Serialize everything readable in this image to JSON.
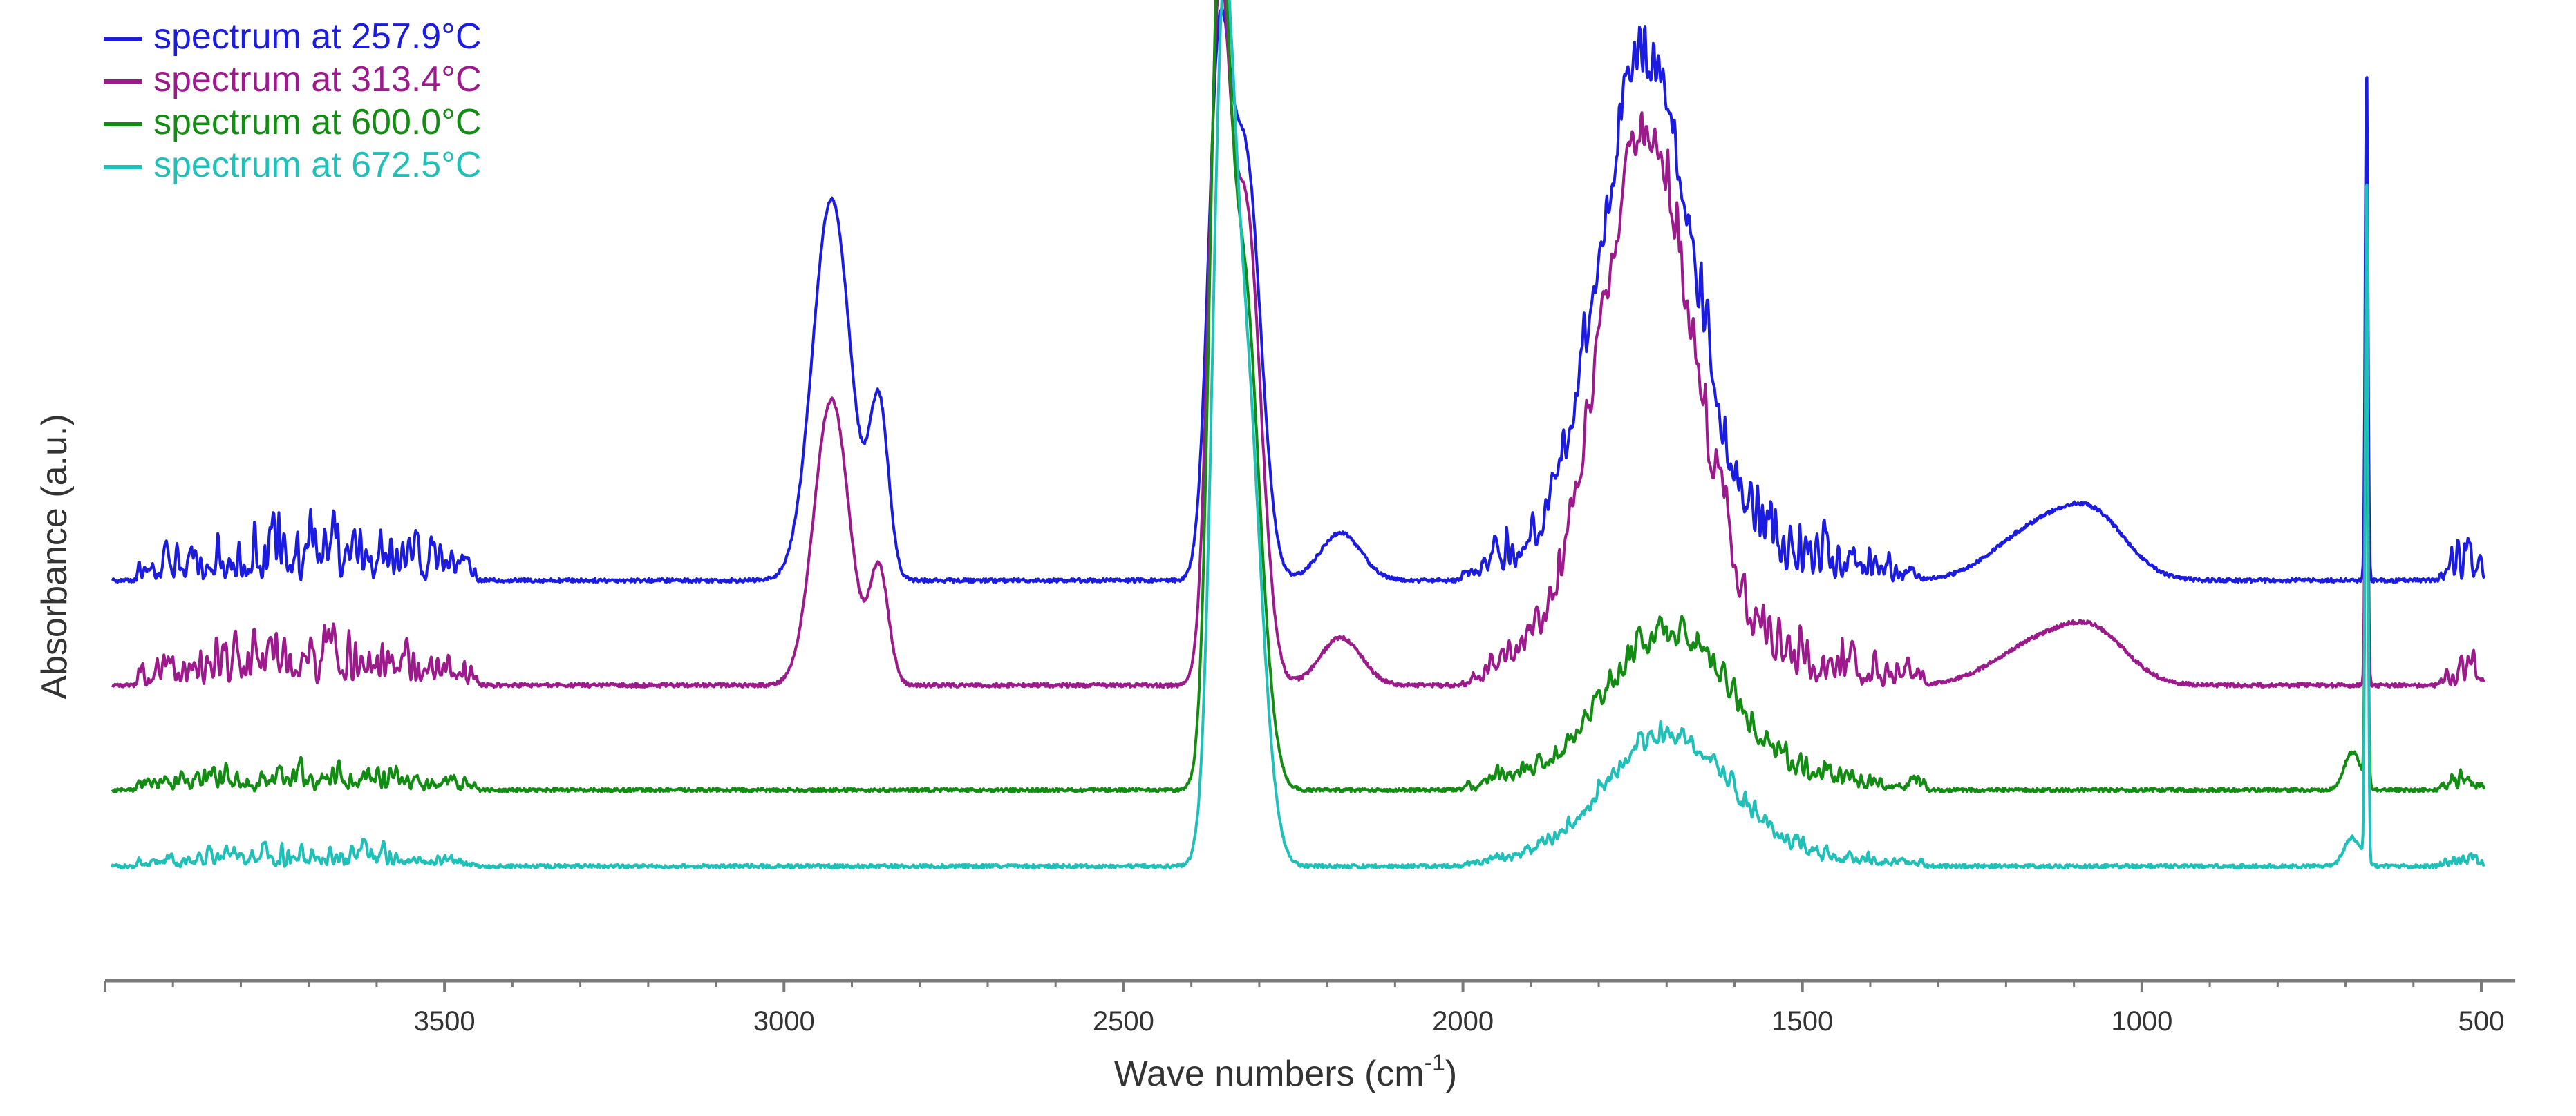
{
  "chart_data": {
    "type": "line",
    "title": "",
    "xlabel": "Wave numbers (cm",
    "xlabel_sup": "-1",
    "xlabel_suffix": ")",
    "ylabel": "Absorbance (a.u.)",
    "x_reversed": true,
    "xlim": [
      4000,
      450
    ],
    "ticks": [
      3500,
      3000,
      2500,
      2000,
      1500,
      1000,
      500
    ],
    "tick_labels": [
      "3500",
      "3000",
      "2500",
      "2000",
      "1500",
      "1000",
      "500"
    ],
    "y_ticks_shown": false,
    "grid": false,
    "legend_position": "top-left",
    "series": [
      {
        "name": "spectrum at 257.9°C",
        "color": "#1c1ce0",
        "baseline": 0.42,
        "h_sharp": 0.6,
        "peaks": [
          {
            "x": 2930,
            "h": 0.4,
            "w": 28
          },
          {
            "x": 2860,
            "h": 0.18,
            "w": 14
          },
          {
            "x": 2360,
            "h": 0.5,
            "w": 16
          },
          {
            "x": 2320,
            "h": 0.44,
            "w": 22
          },
          {
            "x": 2180,
            "h": 0.05,
            "w": 30
          },
          {
            "x": 1730,
            "h": 0.52,
            "w": 70
          },
          {
            "x": 1160,
            "h": 0.05,
            "w": 60
          },
          {
            "x": 1070,
            "h": 0.06,
            "w": 50
          },
          {
            "x": 669,
            "h": 0.55,
            "w": 2
          }
        ]
      },
      {
        "name": "spectrum at 313.4°C",
        "color": "#9c1a8c",
        "baseline": 0.31,
        "h_sharp": 0.55,
        "peaks": [
          {
            "x": 2930,
            "h": 0.3,
            "w": 26
          },
          {
            "x": 2860,
            "h": 0.12,
            "w": 14
          },
          {
            "x": 2360,
            "h": 0.64,
            "w": 15
          },
          {
            "x": 2320,
            "h": 0.5,
            "w": 22
          },
          {
            "x": 2180,
            "h": 0.05,
            "w": 30
          },
          {
            "x": 1730,
            "h": 0.55,
            "w": 70
          },
          {
            "x": 1160,
            "h": 0.04,
            "w": 60
          },
          {
            "x": 1070,
            "h": 0.05,
            "w": 50
          },
          {
            "x": 669,
            "h": 0.45,
            "w": 2
          }
        ]
      },
      {
        "name": "spectrum at 600.0°C",
        "color": "#138c13",
        "baseline": 0.2,
        "h_sharp": 0.28,
        "peaks": [
          {
            "x": 2360,
            "h": 0.71,
            "w": 14
          },
          {
            "x": 2325,
            "h": 0.55,
            "w": 24
          },
          {
            "x": 1700,
            "h": 0.15,
            "w": 90
          },
          {
            "x": 690,
            "h": 0.04,
            "w": 12
          },
          {
            "x": 669,
            "h": 0.48,
            "w": 2
          }
        ]
      },
      {
        "name": "spectrum at 672.5°C",
        "color": "#1ec0b8",
        "baseline": 0.12,
        "h_sharp": 0.2,
        "peaks": [
          {
            "x": 2355,
            "h": 0.64,
            "w": 15
          },
          {
            "x": 2325,
            "h": 0.56,
            "w": 25
          },
          {
            "x": 1700,
            "h": 0.13,
            "w": 90
          },
          {
            "x": 690,
            "h": 0.03,
            "w": 12
          },
          {
            "x": 669,
            "h": 0.74,
            "w": 2
          }
        ]
      }
    ]
  }
}
